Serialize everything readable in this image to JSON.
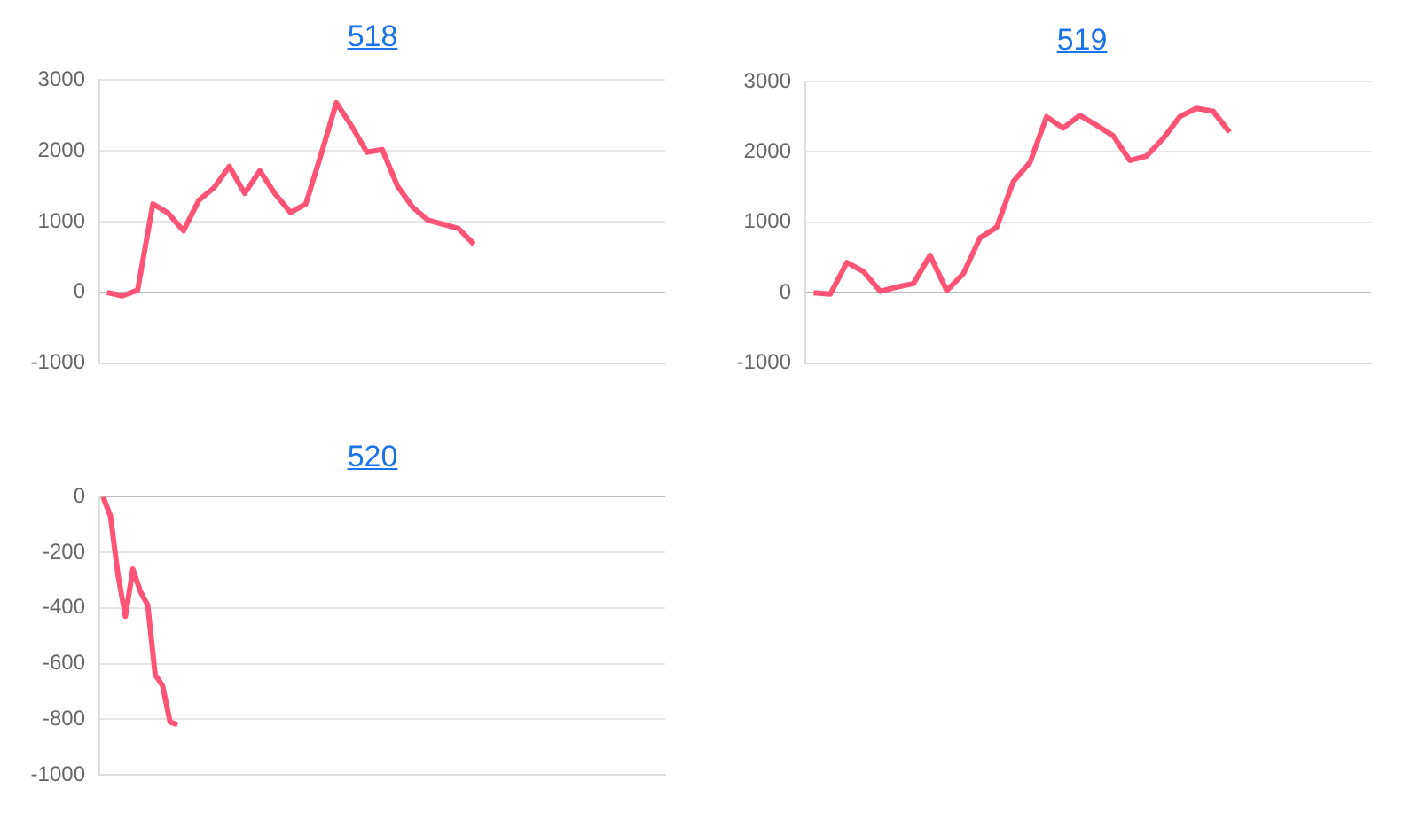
{
  "chart_data": [
    {
      "type": "line",
      "title": "518",
      "categories": [
        null,
        null,
        null,
        null,
        null,
        null,
        null,
        null,
        null,
        null,
        null,
        null,
        null,
        null,
        null,
        null,
        null,
        null,
        null,
        null,
        null,
        null,
        null,
        null,
        null,
        null,
        null,
        null,
        null,
        null,
        null,
        null,
        null,
        null,
        null,
        null,
        null
      ],
      "series": [
        {
          "color": "#ff5476",
          "values": [
            0,
            -50,
            30,
            1250,
            1120,
            870,
            1300,
            1480,
            1780,
            1400,
            1720,
            1390,
            1130,
            1250,
            1950,
            2680,
            2350,
            1980,
            2020,
            1500,
            1200,
            1020,
            960,
            900,
            680,
            null,
            null,
            null,
            null,
            null,
            null,
            null,
            null,
            null,
            null,
            null,
            null
          ]
        }
      ],
      "ylim": [
        -1000,
        3000
      ],
      "yticks": [
        -1000,
        0,
        1000,
        2000,
        3000
      ],
      "grid": "y",
      "legend": false,
      "tick_labels": "y",
      "marker": "none"
    },
    {
      "type": "line",
      "title": "519",
      "categories": [
        null,
        null,
        null,
        null,
        null,
        null,
        null,
        null,
        null,
        null,
        null,
        null,
        null,
        null,
        null,
        null,
        null,
        null,
        null,
        null,
        null,
        null,
        null,
        null,
        null,
        null,
        null,
        null,
        null,
        null,
        null,
        null,
        null,
        null
      ],
      "series": [
        {
          "color": "#ff5476",
          "values": [
            0,
            -20,
            430,
            300,
            20,
            80,
            130,
            530,
            30,
            270,
            780,
            930,
            1580,
            1850,
            2500,
            2340,
            2520,
            2380,
            2230,
            1880,
            1940,
            2190,
            2500,
            2620,
            2580,
            2280,
            null,
            null,
            null,
            null,
            null,
            null,
            null,
            null
          ]
        }
      ],
      "ylim": [
        -1000,
        3000
      ],
      "yticks": [
        -1000,
        0,
        1000,
        2000,
        3000
      ],
      "grid": "y",
      "legend": false,
      "tick_labels": "y",
      "marker": "none"
    },
    {
      "type": "line",
      "title": "520",
      "categories": [
        null,
        null,
        null,
        null,
        null,
        null,
        null,
        null,
        null,
        null,
        null,
        null,
        null,
        null,
        null,
        null,
        null,
        null,
        null,
        null,
        null,
        null,
        null,
        null,
        null,
        null,
        null,
        null,
        null,
        null,
        null,
        null,
        null,
        null,
        null,
        null,
        null,
        null,
        null,
        null,
        null,
        null,
        null,
        null,
        null,
        null,
        null,
        null,
        null,
        null,
        null,
        null,
        null,
        null,
        null,
        null,
        null,
        null,
        null,
        null,
        null,
        null,
        null,
        null,
        null,
        null,
        null,
        null,
        null,
        null,
        null,
        null,
        null,
        null,
        null,
        null
      ],
      "series": [
        {
          "color": "#ff5476",
          "values": [
            0,
            -70,
            -280,
            -430,
            -260,
            -340,
            -390,
            -640,
            -680,
            -810,
            -820,
            null,
            null,
            null,
            null,
            null,
            null,
            null,
            null,
            null,
            null,
            null,
            null,
            null,
            null,
            null,
            null,
            null,
            null,
            null,
            null,
            null,
            null,
            null,
            null,
            null,
            null,
            null,
            null,
            null,
            null,
            null,
            null,
            null,
            null,
            null,
            null,
            null,
            null,
            null,
            null,
            null,
            null,
            null,
            null,
            null,
            null,
            null,
            null,
            null,
            null,
            null,
            null,
            null,
            null,
            null,
            null,
            null,
            null,
            null,
            null,
            null,
            null,
            null,
            null,
            null
          ]
        }
      ],
      "ylim": [
        -1000,
        0
      ],
      "yticks": [
        -1000,
        -800,
        -600,
        -400,
        -200,
        0
      ],
      "grid": "y",
      "legend": false,
      "tick_labels": "y",
      "marker": "none"
    }
  ]
}
